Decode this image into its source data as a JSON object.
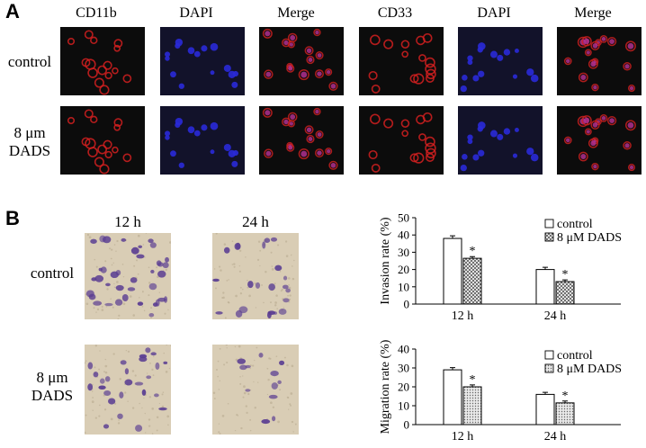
{
  "panel_a": {
    "letter": "A",
    "columns": [
      "CD11b",
      "DAPI",
      "Merge",
      "CD33",
      "DAPI",
      "Merge"
    ],
    "rows": [
      {
        "label_lines": [
          "control"
        ]
      },
      {
        "label_lines": [
          "8 μm",
          "DADS"
        ]
      }
    ]
  },
  "panel_b": {
    "letter": "B",
    "columns": [
      "12 h",
      "24 h"
    ],
    "rows": [
      {
        "label_lines": [
          "control"
        ]
      },
      {
        "label_lines": [
          "8 μm",
          "DADS"
        ]
      }
    ]
  },
  "colors": {
    "cd_red": "#d42020",
    "dapi_blue": "#2a2ad8",
    "merge_magenta": "#b03090",
    "stain_bg": "#d9cdb5",
    "crystal_violet": "#5a3d92"
  },
  "chart_data": [
    {
      "type": "bar",
      "categories": [
        "12 h",
        "24 h"
      ],
      "series": [
        {
          "name": "control",
          "values": [
            38,
            20
          ],
          "errors": [
            1.5,
            1.3
          ],
          "pattern": "open"
        },
        {
          "name": "8 μM DADS",
          "values": [
            26.5,
            13
          ],
          "errors": [
            1.0,
            1.0
          ],
          "pattern": "crosshatch"
        }
      ],
      "significance": [
        {
          "category": "12 h",
          "series": "8 μM DADS",
          "mark": "*"
        },
        {
          "category": "24 h",
          "series": "8 μM DADS",
          "mark": "*"
        }
      ],
      "ylabel": "Invasion rate (%)",
      "ylim": [
        0,
        50
      ],
      "yticks": [
        "0",
        "10",
        "20",
        "30",
        "40",
        "50"
      ],
      "legend_position": "top-right",
      "grid": false
    },
    {
      "type": "bar",
      "categories": [
        "12 h",
        "24 h"
      ],
      "series": [
        {
          "name": "control",
          "values": [
            29,
            16
          ],
          "errors": [
            1.2,
            1.1
          ],
          "pattern": "open"
        },
        {
          "name": "8 μM DADS",
          "values": [
            20,
            11.5
          ],
          "errors": [
            1.0,
            1.0
          ],
          "pattern": "dotted"
        }
      ],
      "significance": [
        {
          "category": "12 h",
          "series": "8 μM DADS",
          "mark": "*"
        },
        {
          "category": "24 h",
          "series": "8 μM DADS",
          "mark": "*"
        }
      ],
      "ylabel": "Migration rate (%)",
      "ylim": [
        0,
        40
      ],
      "yticks": [
        "0",
        "10",
        "20",
        "30",
        "40"
      ],
      "legend_position": "top-right",
      "grid": false
    }
  ]
}
